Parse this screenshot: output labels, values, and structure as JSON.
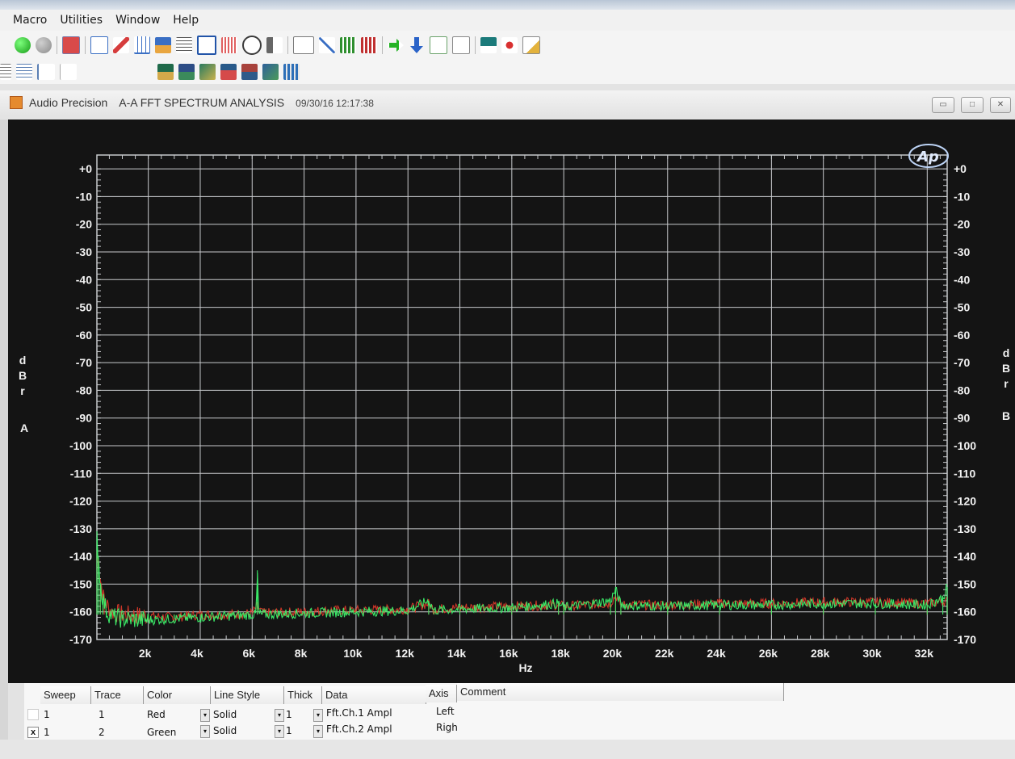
{
  "menu": [
    "Macro",
    "Utilities",
    "Window",
    "Help"
  ],
  "window": {
    "app": "Audio Precision",
    "title": "A-A FFT SPECTRUM ANALYSIS",
    "timestamp": "09/30/16 12:17:38"
  },
  "colors": {
    "trace1": "#e23b2b",
    "trace2": "#3cf26a",
    "grid": "#c7c9cc",
    "plot_bg": "#141414"
  },
  "chart_data": {
    "type": "line",
    "x_unit": "Hz",
    "xlabel": "Hz",
    "ylabel_left": [
      "d",
      "B",
      "r",
      "A"
    ],
    "ylabel_right": [
      "d",
      "B",
      "r",
      "B"
    ],
    "xlim": [
      20,
      32768
    ],
    "ylim": [
      -170,
      5
    ],
    "x_ticks": [
      2000,
      4000,
      6000,
      8000,
      10000,
      12000,
      14000,
      16000,
      18000,
      20000,
      22000,
      24000,
      26000,
      28000,
      30000,
      32000
    ],
    "x_tick_labels": [
      "2k",
      "4k",
      "6k",
      "8k",
      "10k",
      "12k",
      "14k",
      "16k",
      "18k",
      "20k",
      "22k",
      "24k",
      "26k",
      "28k",
      "30k",
      "32k"
    ],
    "y_ticks_left": [
      0,
      -10,
      -20,
      -30,
      -40,
      -50,
      -60,
      -70,
      -80,
      -90,
      -100,
      -110,
      -120,
      -130,
      -140,
      -150,
      -160,
      -170
    ],
    "y_tick_labels_left": [
      "+0",
      "-10",
      "-20",
      "-30",
      "-40",
      "-50",
      "-60",
      "-70",
      "-80",
      "-90",
      "-100",
      "-110",
      "-120",
      "-130",
      "-140",
      "-150",
      "-160",
      "-170"
    ],
    "y_tick_labels_right": [
      "+0",
      "-10",
      "-20",
      "-30",
      "-40",
      "-50",
      "-60",
      "-70",
      "-80",
      "-90",
      "-100",
      "-110",
      "-120",
      "-130",
      "-140",
      "-150",
      "-160",
      "-170"
    ],
    "grid": true,
    "series": [
      {
        "name": "Fft.Ch.1 Ampl",
        "color": "#e23b2b",
        "points": [
          [
            20,
            -138
          ],
          [
            150,
            -148
          ],
          [
            300,
            -156
          ],
          [
            600,
            -160
          ],
          [
            1000,
            -161
          ],
          [
            2000,
            -161.5
          ],
          [
            3000,
            -162
          ],
          [
            4000,
            -161
          ],
          [
            5000,
            -161
          ],
          [
            6000,
            -160.5
          ],
          [
            6200,
            -158
          ],
          [
            6400,
            -160.5
          ],
          [
            8000,
            -160
          ],
          [
            9000,
            -159.5
          ],
          [
            10000,
            -159.5
          ],
          [
            12000,
            -159
          ],
          [
            12800,
            -157
          ],
          [
            13000,
            -159
          ],
          [
            14000,
            -158.5
          ],
          [
            16000,
            -158
          ],
          [
            17800,
            -157.5
          ],
          [
            18000,
            -158
          ],
          [
            19800,
            -157
          ],
          [
            20000,
            -154
          ],
          [
            20200,
            -157.5
          ],
          [
            22000,
            -157.5
          ],
          [
            24000,
            -157
          ],
          [
            26000,
            -157
          ],
          [
            28000,
            -156.5
          ],
          [
            30000,
            -156.5
          ],
          [
            32000,
            -157
          ],
          [
            32768,
            -156
          ]
        ]
      },
      {
        "name": "Fft.Ch.2 Ampl",
        "color": "#3cf26a",
        "points": [
          [
            20,
            -133
          ],
          [
            80,
            -140
          ],
          [
            150,
            -150
          ],
          [
            250,
            -155
          ],
          [
            400,
            -160
          ],
          [
            700,
            -162
          ],
          [
            1000,
            -162.5
          ],
          [
            2000,
            -163
          ],
          [
            3000,
            -162.5
          ],
          [
            4000,
            -162
          ],
          [
            5000,
            -161.5
          ],
          [
            6150,
            -161
          ],
          [
            6200,
            -145
          ],
          [
            6250,
            -161
          ],
          [
            8000,
            -160.5
          ],
          [
            10000,
            -160
          ],
          [
            12000,
            -159.5
          ],
          [
            12800,
            -156
          ],
          [
            13000,
            -159.5
          ],
          [
            14000,
            -159
          ],
          [
            16000,
            -158.5
          ],
          [
            17800,
            -157
          ],
          [
            18000,
            -158.5
          ],
          [
            19800,
            -156
          ],
          [
            20000,
            -152
          ],
          [
            20200,
            -157.5
          ],
          [
            22000,
            -158
          ],
          [
            24000,
            -157.5
          ],
          [
            26000,
            -157.5
          ],
          [
            28000,
            -157
          ],
          [
            30000,
            -157
          ],
          [
            32000,
            -157.5
          ],
          [
            32600,
            -155
          ],
          [
            32768,
            -151
          ]
        ]
      }
    ]
  },
  "trace_table": {
    "headers": [
      "Sweep",
      "Trace",
      "Color",
      "Line Style",
      "Thick",
      "Data",
      "Axis",
      "Comment"
    ],
    "rows": [
      {
        "sweep": "1",
        "trace": "1",
        "color": "Red",
        "line_style": "Solid",
        "thick": "1",
        "data": "Fft.Ch.1 Ampl",
        "axis": "Left",
        "checked": ""
      },
      {
        "sweep": "1",
        "trace": "2",
        "color": "Green",
        "line_style": "Solid",
        "thick": "1",
        "data": "Fft.Ch.2 Ampl",
        "axis": "Righ",
        "checked": "x"
      }
    ]
  }
}
